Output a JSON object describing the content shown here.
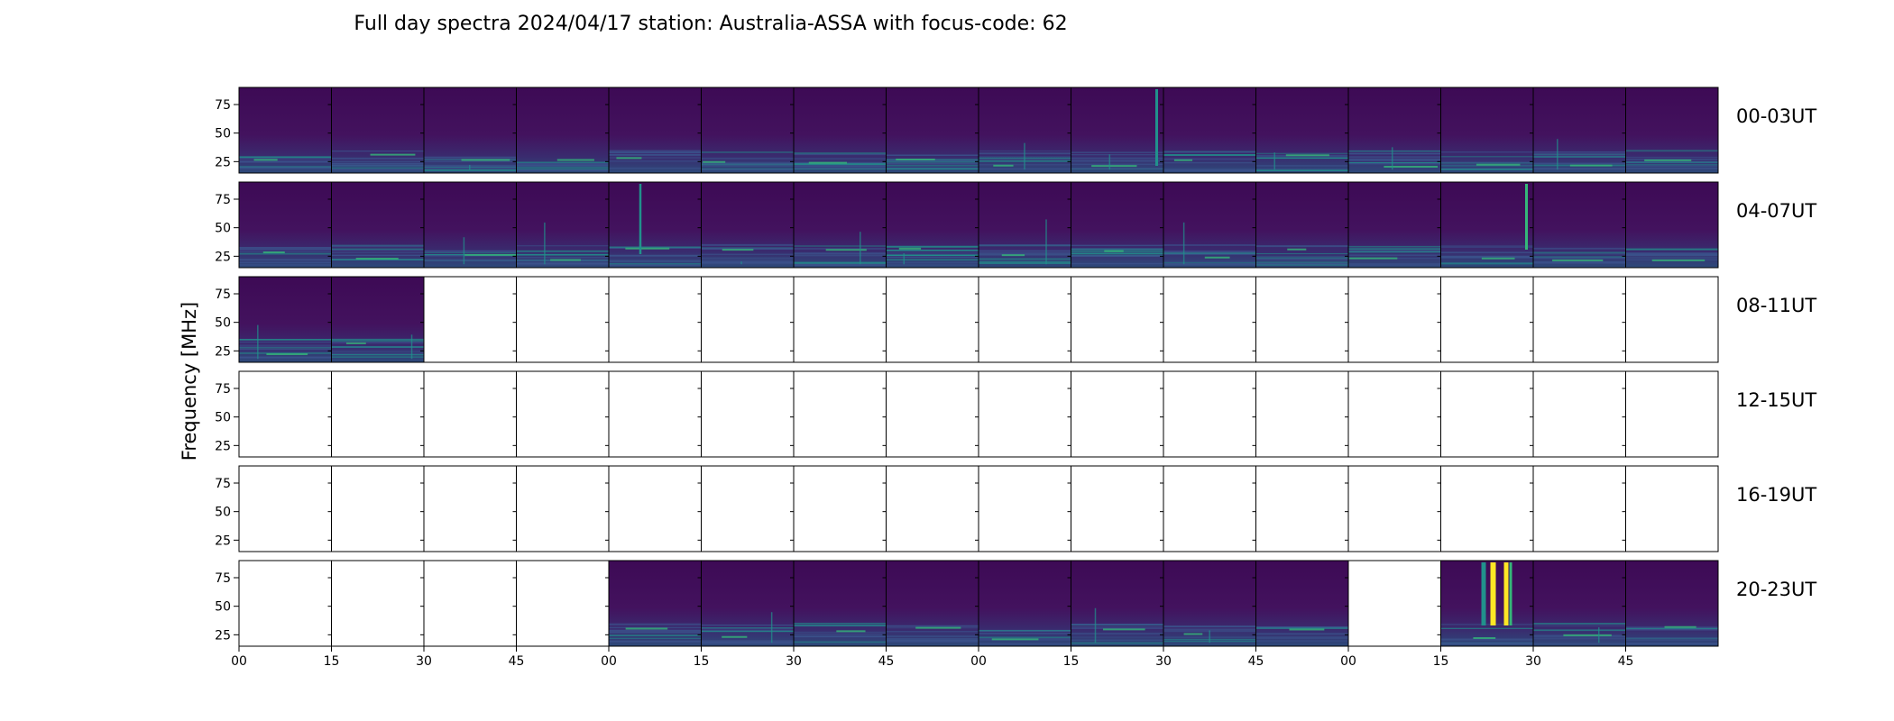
{
  "chart_data": {
    "type": "heatmap",
    "title": "Full day spectra 2024/04/17 station: Australia-ASSA with focus-code: 62",
    "ylabel": "Frequency [MHz]",
    "ylim": [
      15,
      90
    ],
    "yticks": [
      "75",
      "50",
      "25"
    ],
    "ytick_values": [
      75,
      50,
      25
    ],
    "xticks": [
      "00",
      "15",
      "30",
      "45",
      "00",
      "15",
      "30",
      "45",
      "00",
      "15",
      "30",
      "45",
      "00",
      "15",
      "30",
      "45"
    ],
    "rows": [
      {
        "label": "00-03UT",
        "panels": [
          1,
          1,
          1,
          1,
          1,
          1,
          1,
          1,
          1,
          1,
          1,
          1,
          1,
          1,
          1,
          1
        ]
      },
      {
        "label": "04-07UT",
        "panels": [
          1,
          1,
          1,
          1,
          1,
          1,
          1,
          1,
          1,
          1,
          1,
          1,
          1,
          1,
          1,
          1
        ]
      },
      {
        "label": "08-11UT",
        "panels": [
          1,
          1,
          0,
          0,
          0,
          0,
          0,
          0,
          0,
          0,
          0,
          0,
          0,
          0,
          0,
          0
        ]
      },
      {
        "label": "12-15UT",
        "panels": [
          0,
          0,
          0,
          0,
          0,
          0,
          0,
          0,
          0,
          0,
          0,
          0,
          0,
          0,
          0,
          0
        ]
      },
      {
        "label": "16-19UT",
        "panels": [
          0,
          0,
          0,
          0,
          0,
          0,
          0,
          0,
          0,
          0,
          0,
          0,
          0,
          0,
          0,
          0
        ]
      },
      {
        "label": "20-23UT",
        "panels": [
          0,
          0,
          0,
          0,
          1,
          1,
          1,
          1,
          1,
          1,
          1,
          1,
          0,
          1,
          1,
          1
        ]
      }
    ],
    "colormap": "viridis",
    "colors": {
      "low": "#440154",
      "mid": "#21918c",
      "high": "#fde725"
    }
  }
}
